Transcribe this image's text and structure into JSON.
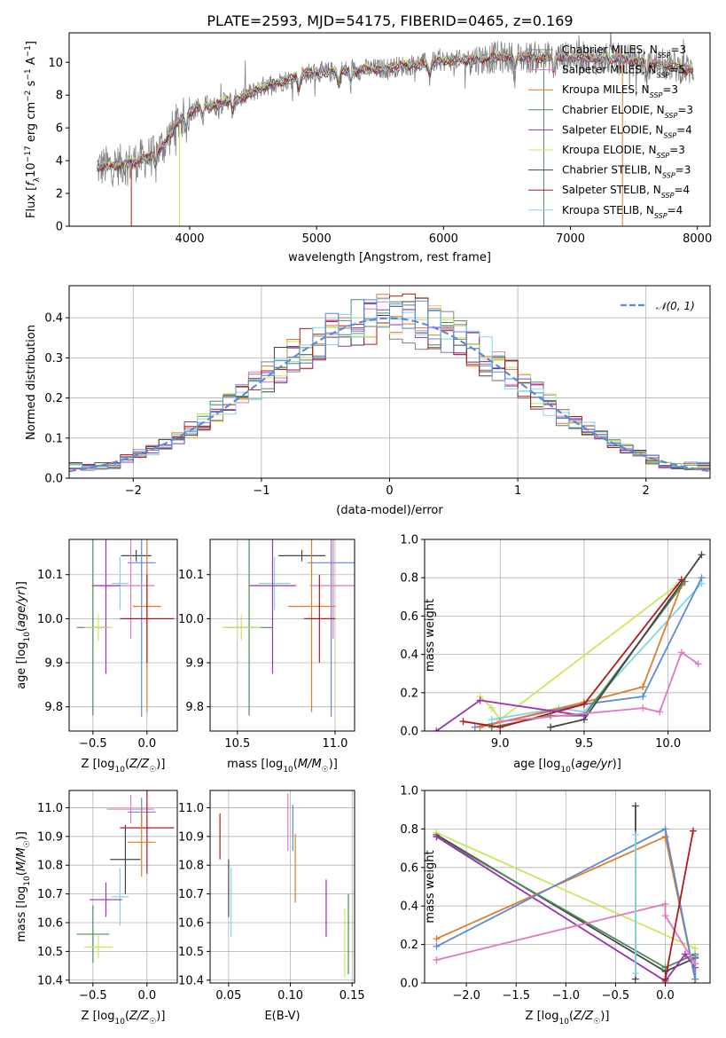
{
  "figure": {
    "title": "PLATE=2593, MJD=54175, FIBERID=0465, z=0.169"
  },
  "chart_data": [
    {
      "id": "spectrum",
      "type": "line",
      "xlabel": "wavelength [Angstrom, rest frame]",
      "ylabel": "Flux [f_λ 10^-17 erg cm^-2 s^-1 A^-1]",
      "xlim": [
        3050,
        8100
      ],
      "ylim": [
        0,
        11.8
      ],
      "xticks": [
        4000,
        5000,
        6000,
        7000,
        8000
      ],
      "yticks": [
        0,
        2,
        4,
        6,
        8,
        10
      ],
      "legend_position": "top-right",
      "data_x": [
        3270,
        3400,
        3500,
        3600,
        3700,
        3800,
        3900,
        4000,
        4100,
        4200,
        4300,
        4400,
        4500,
        4600,
        4700,
        4800,
        4900,
        5000,
        5100,
        5200,
        5300,
        5400,
        5500,
        5600,
        5700,
        5800,
        5900,
        6000,
        6100,
        6200,
        6300,
        6400,
        6500,
        6600,
        6700,
        6800,
        6900,
        7000,
        7100,
        7200,
        7300,
        7400,
        7500,
        7600,
        7700,
        7800,
        7900,
        7970
      ],
      "data_y": [
        3.6,
        3.7,
        3.8,
        4.0,
        4.3,
        5.0,
        6.3,
        7.0,
        7.4,
        7.3,
        7.7,
        7.8,
        8.2,
        8.6,
        8.8,
        9.0,
        9.3,
        9.4,
        9.4,
        9.5,
        9.5,
        9.6,
        9.6,
        9.7,
        9.8,
        9.9,
        10.0,
        10.1,
        10.1,
        10.2,
        10.2,
        10.3,
        10.3,
        10.3,
        10.3,
        10.3,
        10.3,
        10.3,
        10.3,
        10.2,
        10.2,
        10.2,
        10.1,
        10.0,
        9.9,
        9.8,
        9.6,
        9.5
      ],
      "model_dropouts": [
        {
          "model": "Chabrier ELODIE",
          "x": 6790
        },
        {
          "model": "Kroupa ELODIE",
          "x": 3920
        },
        {
          "model": "Salpeter STELIB",
          "x": 3540
        },
        {
          "model": "Kroupa MILES",
          "x": 7410
        }
      ],
      "series": [
        {
          "name": "Chabrier MILES",
          "label": "Chabrier MILES, N",
          "sub": "SSP",
          "n": "=3",
          "color": "#808080"
        },
        {
          "name": "Salpeter MILES",
          "label": "Salpeter MILES, N",
          "sub": "SSP",
          "n": "=5",
          "color": "#e377c2"
        },
        {
          "name": "Kroupa MILES",
          "label": "Kroupa MILES, N",
          "sub": "SSP",
          "n": "=3",
          "color": "#e07b27"
        },
        {
          "name": "Chabrier ELODIE",
          "label": "Chabrier ELODIE, N",
          "sub": "SSP",
          "n": "=3",
          "color": "#4f8a5a"
        },
        {
          "name": "Salpeter ELODIE",
          "label": "Salpeter ELODIE, N",
          "sub": "SSP",
          "n": "=4",
          "color": "#9b30b7"
        },
        {
          "name": "Kroupa ELODIE",
          "label": "Kroupa ELODIE, N",
          "sub": "SSP",
          "n": "=3",
          "color": "#c8e85a"
        },
        {
          "name": "Chabrier STELIB",
          "label": "Chabrier STELIB, N",
          "sub": "SSP",
          "n": "=3",
          "color": "#444444"
        },
        {
          "name": "Salpeter STELIB",
          "label": "Salpeter STELIB, N",
          "sub": "SSP",
          "n": "=4",
          "color": "#b01a1a"
        },
        {
          "name": "Kroupa STELIB",
          "label": "Kroupa STELIB, N",
          "sub": "SSP",
          "n": "=4",
          "color": "#7fd6e8"
        }
      ]
    },
    {
      "id": "residuals",
      "type": "line",
      "xlabel": "(data-model)/error",
      "ylabel": "Normed distribution",
      "xlim": [
        -2.5,
        2.5
      ],
      "ylim": [
        0,
        0.48
      ],
      "xticks": [
        -2,
        -1,
        0,
        1,
        2
      ],
      "yticks": [
        0.0,
        0.1,
        0.2,
        0.3,
        0.4
      ],
      "legend_position": "top-right",
      "reference": {
        "name": "𝒩(0, 1)",
        "color": "#5b8bd6",
        "style": "dashed"
      },
      "bin_width": 0.1,
      "hist_colors": [
        "#808080",
        "#e377c2",
        "#e07b27",
        "#4f8a5a",
        "#9b30b7",
        "#c8e85a",
        "#444444",
        "#b01a1a",
        "#7fd6e8",
        "#5b8bd6"
      ]
    },
    {
      "id": "age_vs_Z",
      "type": "scatter",
      "xlabel": "Z [log10(Z/Z☉)]",
      "ylabel": "age [log10(age/yr)]",
      "xlim": [
        -0.72,
        0.28
      ],
      "ylim": [
        9.745,
        10.18
      ],
      "xticks": [
        -0.5,
        0.0
      ],
      "yticks": [
        9.8,
        9.9,
        10.0,
        10.1
      ],
      "points": [
        {
          "c": "#444444",
          "x": -0.1,
          "xe": 0.14,
          "y": 10.143,
          "ye": 0.013
        },
        {
          "c": "#5b8bd6",
          "x": -0.05,
          "xe": 0.13,
          "y": 10.127,
          "ye": 0.35
        },
        {
          "c": "#7fd6e8",
          "x": -0.25,
          "xe": 0.08,
          "y": 10.08,
          "ye": 0.06
        },
        {
          "c": "#e377c2",
          "x": -0.15,
          "xe": 0.22,
          "y": 10.075,
          "ye": 0.12
        },
        {
          "c": "#9b30b7",
          "x": -0.38,
          "xe": 0.13,
          "y": 10.075,
          "ye": 0.2
        },
        {
          "c": "#e07b27",
          "x": 0.0,
          "xe": 0.13,
          "y": 10.028,
          "ye": 0.24
        },
        {
          "c": "#b01a1a",
          "x": 0.0,
          "xe": 0.25,
          "y": 10.0,
          "ye": 0.1
        },
        {
          "c": "#4f8a5a",
          "x": -0.5,
          "xe": 0.15,
          "y": 9.98,
          "ye": 0.2
        },
        {
          "c": "#c8e85a",
          "x": -0.45,
          "xe": 0.13,
          "y": 9.98,
          "ye": 0.03
        }
      ]
    },
    {
      "id": "age_vs_mass",
      "type": "scatter",
      "xlabel": "mass [log10(M/M☉)]",
      "ylabel": "",
      "xlim": [
        10.36,
        11.1
      ],
      "ylim": [
        9.745,
        10.18
      ],
      "xticks": [
        10.5,
        11.0
      ],
      "yticks": [
        9.8,
        9.9,
        10.0,
        10.1
      ],
      "points": [
        {
          "c": "#444444",
          "x": 10.83,
          "xe": 0.12,
          "y": 10.143,
          "ye": 0.013
        },
        {
          "c": "#5b8bd6",
          "x": 10.98,
          "xe": 0.12,
          "y": 10.127,
          "ye": 0.35
        },
        {
          "c": "#7fd6e8",
          "x": 10.69,
          "xe": 0.08,
          "y": 10.08,
          "ye": 0.06
        },
        {
          "c": "#e377c2",
          "x": 10.99,
          "xe": 0.12,
          "y": 10.075,
          "ye": 0.12
        },
        {
          "c": "#9b30b7",
          "x": 10.68,
          "xe": 0.12,
          "y": 10.075,
          "ye": 0.2
        },
        {
          "c": "#e07b27",
          "x": 10.88,
          "xe": 0.12,
          "y": 10.028,
          "ye": 0.24
        },
        {
          "c": "#b01a1a",
          "x": 10.92,
          "xe": 0.08,
          "y": 10.0,
          "ye": 0.1
        },
        {
          "c": "#4f8a5a",
          "x": 10.56,
          "xe": 0.12,
          "y": 9.98,
          "ye": 0.2
        },
        {
          "c": "#c8e85a",
          "x": 10.52,
          "xe": 0.1,
          "y": 9.98,
          "ye": 0.03
        }
      ]
    },
    {
      "id": "massweight_vs_age",
      "type": "line",
      "xlabel": "age [log10(age/yr)]",
      "ylabel": "mass weight",
      "xlim": [
        8.55,
        10.25
      ],
      "ylim": [
        0,
        1.0
      ],
      "xticks": [
        9.0,
        9.5,
        10.0
      ],
      "yticks": [
        0.0,
        0.2,
        0.4,
        0.6,
        0.8,
        1.0
      ],
      "series": [
        {
          "c": "#c8e85a",
          "x": [
            8.88,
            8.95,
            9.0,
            10.05
          ],
          "y": [
            0.18,
            0.12,
            0.06,
            0.76
          ]
        },
        {
          "c": "#7fd6e8",
          "x": [
            8.95,
            9.35,
            9.5,
            10.2
          ],
          "y": [
            0.06,
            0.12,
            0.1,
            0.77
          ]
        },
        {
          "c": "#5b8bd6",
          "x": [
            8.85,
            9.5,
            9.85,
            10.2
          ],
          "y": [
            0.02,
            0.14,
            0.18,
            0.8
          ]
        },
        {
          "c": "#e07b27",
          "x": [
            8.88,
            9.5,
            9.85,
            10.08
          ],
          "y": [
            0.02,
            0.15,
            0.23,
            0.76
          ]
        },
        {
          "c": "#4f8a5a",
          "x": [
            8.95,
            9.3,
            9.5,
            10.1
          ],
          "y": [
            0.02,
            0.08,
            0.08,
            0.78
          ]
        },
        {
          "c": "#444444",
          "x": [
            9.3,
            9.5,
            10.2
          ],
          "y": [
            0.02,
            0.06,
            0.92
          ]
        },
        {
          "c": "#b01a1a",
          "x": [
            8.78,
            9.0,
            9.5,
            10.08
          ],
          "y": [
            0.05,
            0.02,
            0.14,
            0.79
          ]
        },
        {
          "c": "#9b30b7",
          "x": [
            8.62,
            8.88,
            9.5
          ],
          "y": [
            0.0,
            0.16,
            0.08
          ]
        },
        {
          "c": "#e377c2",
          "x": [
            9.0,
            9.85,
            9.95,
            10.08,
            10.18
          ],
          "y": [
            0.05,
            0.12,
            0.1,
            0.41,
            0.35
          ]
        }
      ]
    },
    {
      "id": "mass_vs_Z",
      "type": "scatter",
      "xlabel": "Z [log10(Z/Z☉)]",
      "ylabel": "mass [log10(M/M☉)]",
      "xlim": [
        -0.72,
        0.28
      ],
      "ylim": [
        10.39,
        11.06
      ],
      "xticks": [
        -0.5,
        0.0
      ],
      "yticks": [
        10.4,
        10.5,
        10.6,
        10.7,
        10.8,
        10.9,
        11.0
      ],
      "points": [
        {
          "c": "#e377c2",
          "x": -0.15,
          "xe": 0.22,
          "y": 10.995,
          "ye": 0.05
        },
        {
          "c": "#5b8bd6",
          "x": -0.05,
          "xe": 0.13,
          "y": 10.985,
          "ye": 0.05
        },
        {
          "c": "#b01a1a",
          "x": 0.0,
          "xe": 0.25,
          "y": 10.93,
          "ye": 0.16
        },
        {
          "c": "#e07b27",
          "x": -0.05,
          "xe": 0.13,
          "y": 10.88,
          "ye": 0.12
        },
        {
          "c": "#444444",
          "x": -0.2,
          "xe": 0.14,
          "y": 10.82,
          "ye": 0.12
        },
        {
          "c": "#7fd6e8",
          "x": -0.25,
          "xe": 0.08,
          "y": 10.69,
          "ye": 0.1
        },
        {
          "c": "#9b30b7",
          "x": -0.38,
          "xe": 0.15,
          "y": 10.68,
          "ye": 0.06
        },
        {
          "c": "#4f8a5a",
          "x": -0.5,
          "xe": 0.15,
          "y": 10.56,
          "ye": 0.1
        },
        {
          "c": "#c8e85a",
          "x": -0.45,
          "xe": 0.13,
          "y": 10.515,
          "ye": 0.04
        }
      ]
    },
    {
      "id": "mass_vs_EBV",
      "type": "scatter",
      "xlabel": "E(B-V)",
      "ylabel": "",
      "xlim": [
        0.035,
        0.152
      ],
      "ylim": [
        10.39,
        11.06
      ],
      "xticks": [
        0.05,
        0.1,
        0.15
      ],
      "yticks": [
        10.4,
        10.5,
        10.6,
        10.7,
        10.8,
        10.9,
        11.0
      ],
      "points": [
        {
          "c": "#b01a1a",
          "x": 0.043,
          "y": 10.9,
          "ye": 0.08
        },
        {
          "c": "#444444",
          "x": 0.05,
          "y": 10.72,
          "ye": 0.1
        },
        {
          "c": "#7fd6e8",
          "x": 0.052,
          "y": 10.67,
          "ye": 0.12
        },
        {
          "c": "#e377c2",
          "x": 0.098,
          "y": 10.95,
          "ye": 0.1
        },
        {
          "c": "#5b8bd6",
          "x": 0.102,
          "y": 10.93,
          "ye": 0.08
        },
        {
          "c": "#e07b27",
          "x": 0.104,
          "y": 10.79,
          "ye": 0.12
        },
        {
          "c": "#9b30b7",
          "x": 0.129,
          "y": 10.65,
          "ye": 0.1
        },
        {
          "c": "#c8e85a",
          "x": 0.144,
          "y": 10.53,
          "ye": 0.12
        },
        {
          "c": "#4f8a5a",
          "x": 0.147,
          "y": 10.56,
          "ye": 0.14
        }
      ]
    },
    {
      "id": "massweight_vs_Z",
      "type": "line",
      "xlabel": "Z [log10(Z/Z☉)]",
      "ylabel": "mass weight",
      "xlim": [
        -2.42,
        0.45
      ],
      "ylim": [
        0,
        1.0
      ],
      "xticks": [
        -2.0,
        -1.5,
        -1.0,
        -0.5,
        0.0
      ],
      "yticks": [
        0.0,
        0.2,
        0.4,
        0.6,
        0.8,
        1.0
      ],
      "series": [
        {
          "c": "#444444",
          "x": [
            -2.3,
            0.0,
            0.3,
            0.3
          ],
          "y": [
            0.77,
            0.06,
            0.13,
            0.0
          ]
        },
        {
          "c": "#444444",
          "x": [
            -0.3,
            -0.3
          ],
          "y": [
            0.92,
            0.02
          ]
        },
        {
          "c": "#4f8a5a",
          "x": [
            -2.3,
            0.0,
            0.3
          ],
          "y": [
            0.76,
            0.08,
            0.15
          ]
        },
        {
          "c": "#c8e85a",
          "x": [
            -2.3,
            0.3,
            0.3
          ],
          "y": [
            0.78,
            0.18,
            0.02
          ]
        },
        {
          "c": "#9b30b7",
          "x": [
            -2.3,
            0.0,
            0.2,
            0.3
          ],
          "y": [
            0.76,
            0.01,
            0.15,
            0.08
          ]
        },
        {
          "c": "#e07b27",
          "x": [
            -2.3,
            0.0,
            0.3
          ],
          "y": [
            0.23,
            0.76,
            0.02
          ]
        },
        {
          "c": "#5b8bd6",
          "x": [
            -2.3,
            0.0,
            0.3,
            0.3
          ],
          "y": [
            0.19,
            0.8,
            0.02,
            0.14
          ]
        },
        {
          "c": "#e377c2",
          "x": [
            -2.3,
            0.0,
            0.0,
            0.3
          ],
          "y": [
            0.12,
            0.41,
            0.35,
            0.1
          ]
        },
        {
          "c": "#b01a1a",
          "x": [
            0.0,
            0.28
          ],
          "y": [
            0.02,
            0.79
          ]
        },
        {
          "c": "#7fd6e8",
          "x": [
            -0.3,
            -0.3
          ],
          "y": [
            0.77,
            0.05
          ]
        },
        {
          "c": "#b01a1a",
          "x": [
            0.0,
            0.0
          ],
          "y": [
            0.02,
            0.0
          ]
        }
      ]
    }
  ]
}
